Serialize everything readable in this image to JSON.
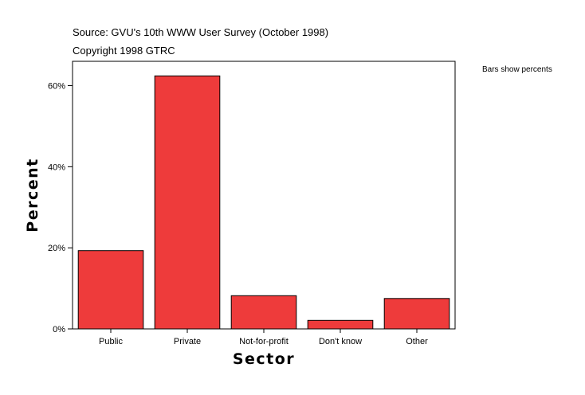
{
  "header": {
    "source": "Source: GVU's 10th WWW User Survey (October 1998)",
    "copyright": "Copyright 1998 GTRC"
  },
  "note": "Bars show percents",
  "chart_data": {
    "type": "bar",
    "categories": [
      "Public",
      "Private",
      "Not-for-profit",
      "Don't know",
      "Other"
    ],
    "values": [
      19.3,
      62.4,
      8.2,
      2.1,
      7.5
    ],
    "xlabel": "Sector",
    "ylabel": "Percent",
    "ylim": [
      0,
      66
    ],
    "yticks": [
      0,
      20,
      40,
      60
    ],
    "ytick_labels": [
      "0%",
      "20%",
      "40%",
      "60%"
    ],
    "grid": false,
    "legend": "none",
    "bar_color": "#ee3b3b"
  }
}
